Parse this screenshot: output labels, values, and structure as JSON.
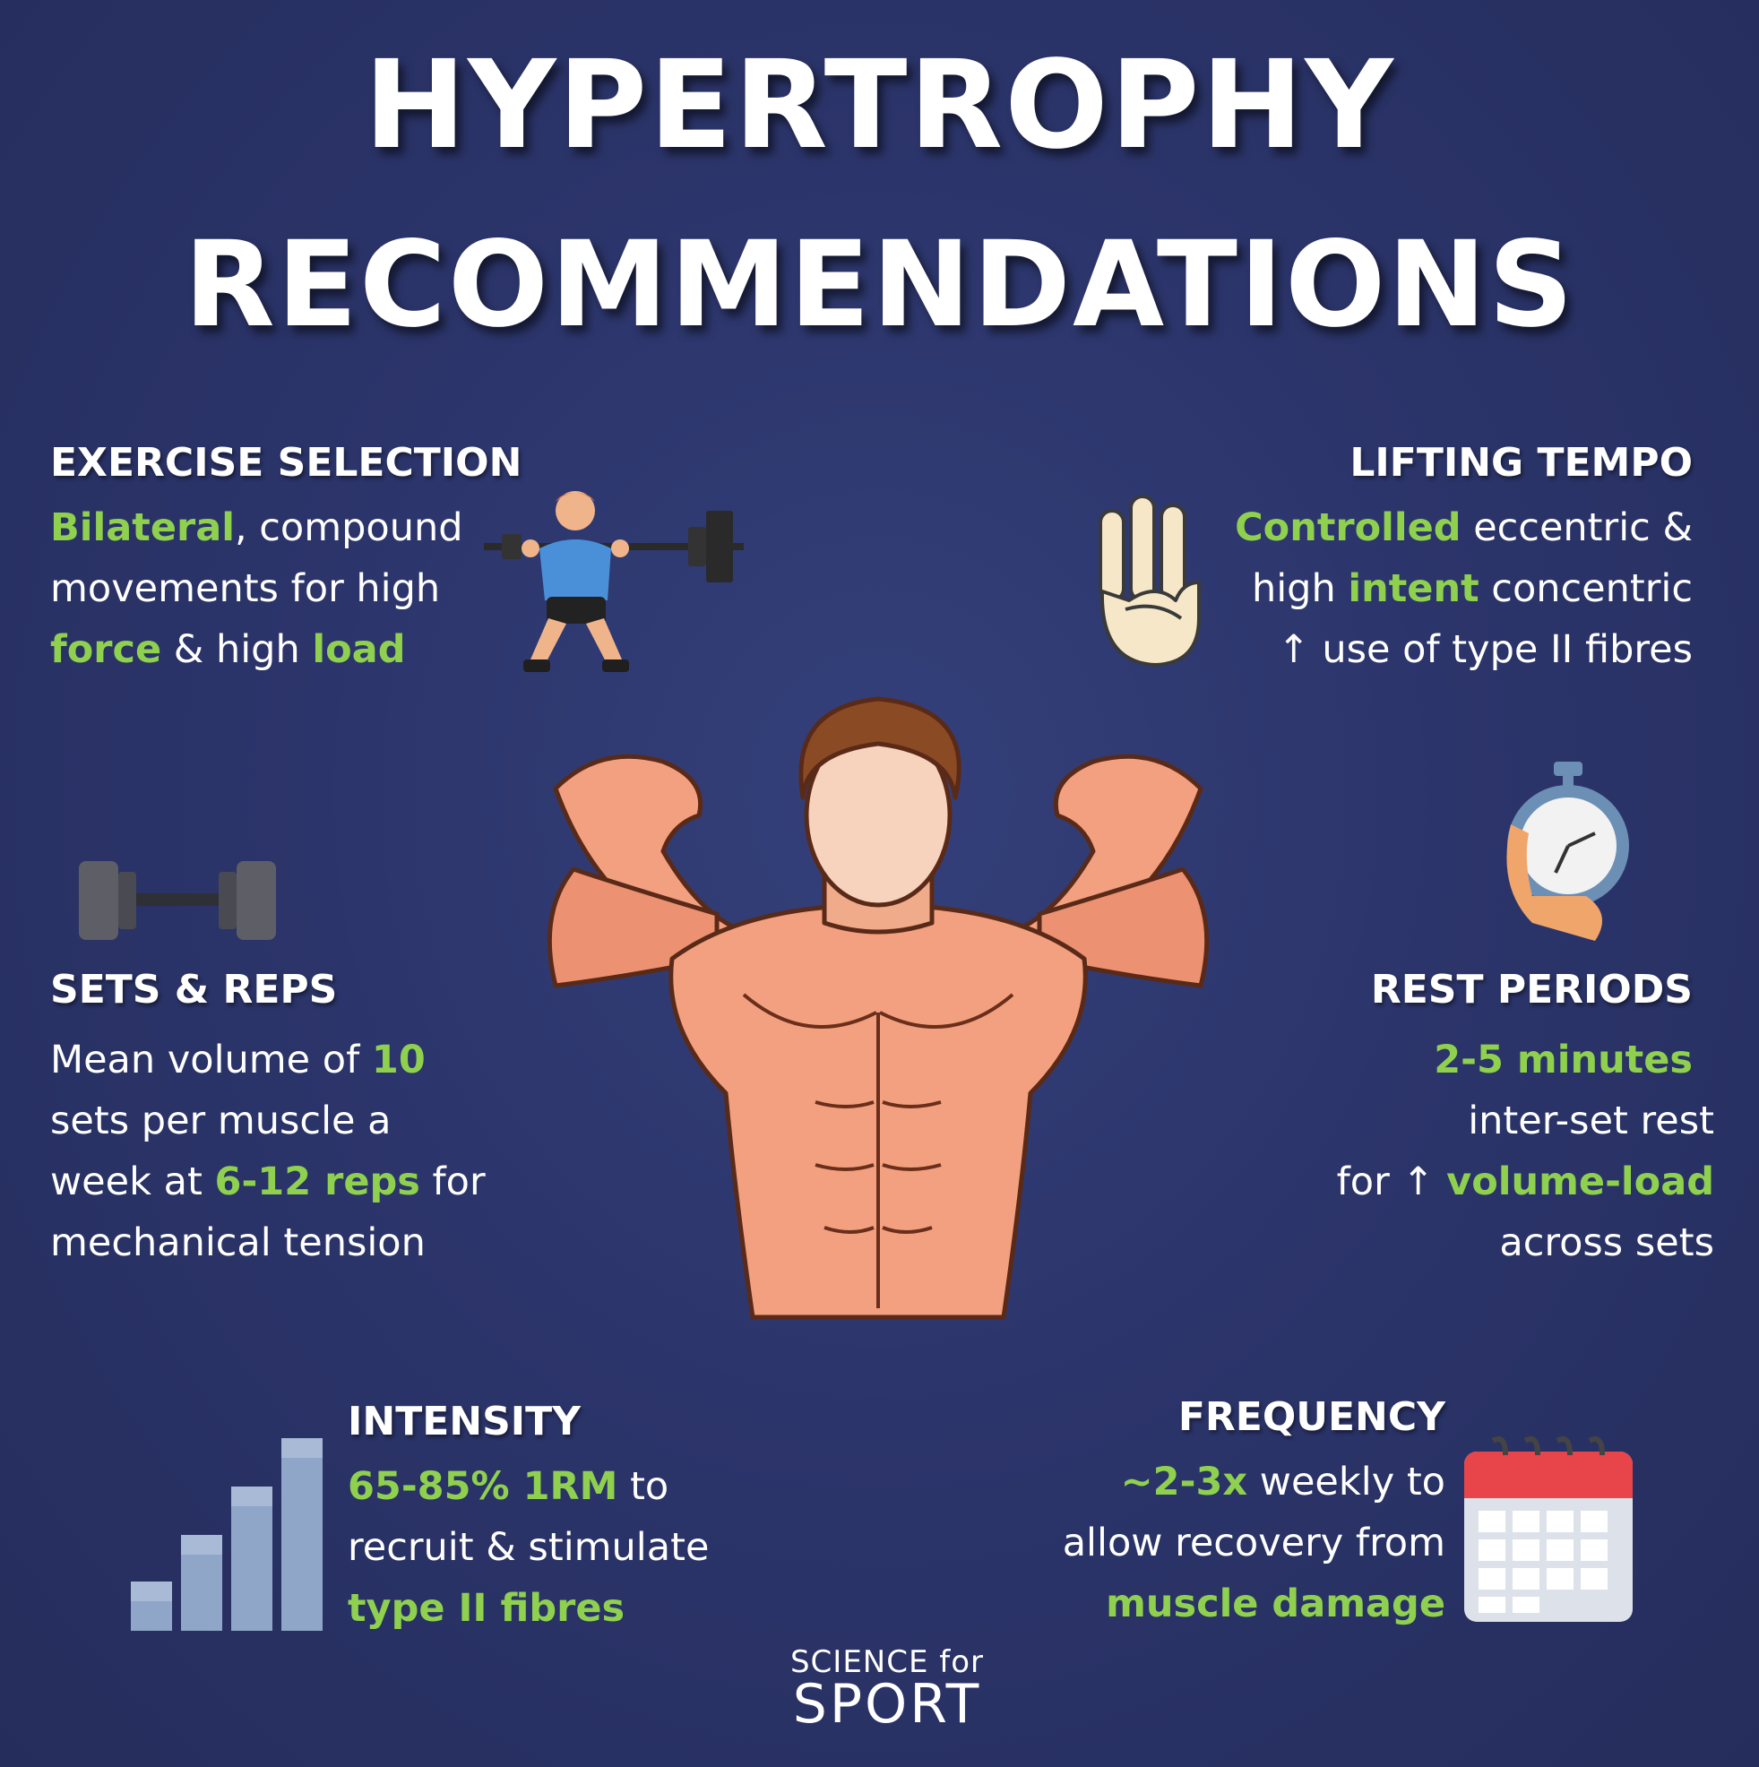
{
  "title": {
    "line1": "HYPERTROPHY",
    "line2": "RECOMMENDATIONS"
  },
  "exercise_selection": {
    "title": "EXERCISE SELECTION",
    "l1a": "Bilateral",
    "l1b": ", compound",
    "l2": "movements for high",
    "l3a": "force",
    "l3b": " & high ",
    "l3c": "load"
  },
  "lifting_tempo": {
    "title": "LIFTING TEMPO",
    "l1a": "Controlled",
    "l1b": " eccentric &",
    "l2a": "high ",
    "l2b": "intent",
    "l2c": " concentric",
    "l3": "↑ use of type II fibres"
  },
  "sets_reps": {
    "title": "SETS & REPS",
    "l1a": "Mean volume of ",
    "l1b": "10",
    "l2": "sets per muscle a",
    "l3a": "week at ",
    "l3b": "6-12 reps",
    "l3c": " for",
    "l4": "mechanical tension"
  },
  "rest_periods": {
    "title": "REST PERIODS",
    "l1": "2-5 minutes",
    "l2": "inter-set rest",
    "l3a": "for ↑ ",
    "l3b": "volume-load",
    "l4": "across sets"
  },
  "intensity": {
    "title": "INTENSITY",
    "l1a": "65-85% 1RM",
    "l1b": " to",
    "l2": "recruit & stimulate",
    "l3": "type II fibres"
  },
  "frequency": {
    "title": "FREQUENCY",
    "l1a": "~2-3x",
    "l1b": " weekly to",
    "l2": "allow recovery from",
    "l3": "muscle damage"
  },
  "brand": {
    "top": "SCIENCE for",
    "bottom": "SPORT"
  },
  "icons": [
    "squat-icon",
    "hand-three-fingers-icon",
    "dumbbell-icon",
    "stopwatch-icon",
    "bar-chart-icon",
    "calendar-icon",
    "flexing-bodybuilder-illustration"
  ],
  "colors": {
    "background": "#2b3468",
    "accent_green": "#8fd14f",
    "text": "#ffffff"
  }
}
